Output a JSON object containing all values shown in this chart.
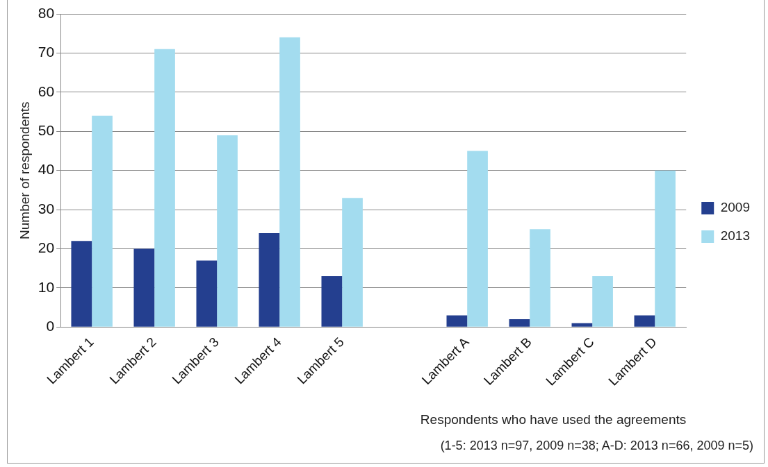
{
  "chart_data": {
    "type": "bar",
    "xlabel": "Respondents who have used the agreements",
    "ylabel": "Number of respondents",
    "annotations": [
      "(1-5: 2013 n=97, 2009 n=38; A-D: 2013 n=66, 2009 n=5)"
    ],
    "categories": [
      "Lambert 1",
      "Lambert 2",
      "Lambert 3",
      "Lambert 4",
      "Lambert 5",
      null,
      "Lambert A",
      "Lambert B",
      "Lambert C",
      "Lambert D"
    ],
    "series": [
      {
        "name": "2009",
        "color": "#243f8f",
        "values": [
          22,
          20,
          17,
          24,
          13,
          null,
          3,
          2,
          1,
          3
        ]
      },
      {
        "name": "2013",
        "color": "#a3dcef",
        "values": [
          54,
          71,
          49,
          74,
          33,
          null,
          45,
          25,
          13,
          40
        ]
      }
    ],
    "ylim": [
      0,
      80
    ],
    "yticks": [
      0,
      10,
      20,
      30,
      40,
      50,
      60,
      70,
      80
    ],
    "grid": "y",
    "legend": "right"
  }
}
